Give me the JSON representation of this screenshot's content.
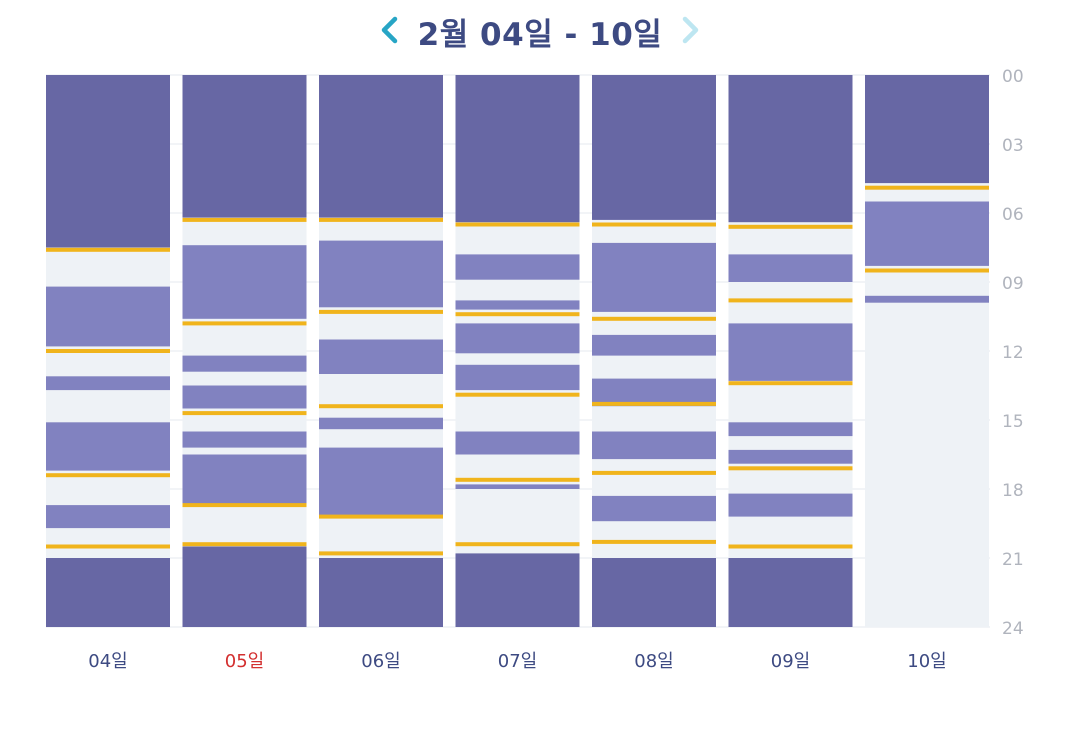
{
  "header": {
    "title": "2월 04일 - 10일",
    "prev_icon": "chevron-left-icon",
    "next_icon": "chevron-right-icon"
  },
  "colors": {
    "deep_sleep": "#6767a4",
    "light_sleep": "#8182c0",
    "awake": "#eef2f6",
    "marker": "#f0b41c",
    "day_label": "#3d4a82",
    "day_label_highlight": "#d32f2f",
    "hour_label": "#b0b4bd",
    "nav_active": "#27a5c5",
    "nav_inactive": "#bde6f1"
  },
  "chart_data": {
    "type": "bar",
    "x_label": "",
    "y_label": "",
    "y_ticks": [
      "00",
      "03",
      "06",
      "09",
      "12",
      "15",
      "18",
      "21",
      "24"
    ],
    "ylim": [
      0,
      24
    ],
    "y_unit": "hours",
    "days": [
      {
        "label": "04일",
        "highlight": false,
        "segments": [
          {
            "start": 0,
            "end": 7.5,
            "kind": "deep_sleep"
          },
          {
            "start": 9.2,
            "end": 11.8,
            "kind": "light_sleep"
          },
          {
            "start": 13.1,
            "end": 13.7,
            "kind": "light_sleep"
          },
          {
            "start": 15.1,
            "end": 17.2,
            "kind": "light_sleep"
          },
          {
            "start": 18.7,
            "end": 19.7,
            "kind": "light_sleep"
          },
          {
            "start": 21.0,
            "end": 24,
            "kind": "deep_sleep"
          }
        ],
        "markers": [
          7.6,
          12.0,
          17.4,
          20.5
        ]
      },
      {
        "label": "05일",
        "highlight": true,
        "segments": [
          {
            "start": 0,
            "end": 6.2,
            "kind": "deep_sleep"
          },
          {
            "start": 7.4,
            "end": 10.6,
            "kind": "light_sleep"
          },
          {
            "start": 12.2,
            "end": 12.9,
            "kind": "light_sleep"
          },
          {
            "start": 13.5,
            "end": 14.5,
            "kind": "light_sleep"
          },
          {
            "start": 15.5,
            "end": 16.2,
            "kind": "light_sleep"
          },
          {
            "start": 16.5,
            "end": 18.7,
            "kind": "light_sleep"
          },
          {
            "start": 20.5,
            "end": 24,
            "kind": "deep_sleep"
          }
        ],
        "markers": [
          6.3,
          10.8,
          14.7,
          18.7,
          20.4
        ]
      },
      {
        "label": "06일",
        "highlight": false,
        "segments": [
          {
            "start": 0,
            "end": 6.2,
            "kind": "deep_sleep"
          },
          {
            "start": 7.2,
            "end": 10.1,
            "kind": "light_sleep"
          },
          {
            "start": 11.5,
            "end": 13.0,
            "kind": "light_sleep"
          },
          {
            "start": 14.9,
            "end": 15.4,
            "kind": "light_sleep"
          },
          {
            "start": 16.2,
            "end": 19.2,
            "kind": "light_sleep"
          },
          {
            "start": 21.0,
            "end": 24,
            "kind": "deep_sleep"
          }
        ],
        "markers": [
          6.3,
          10.3,
          14.4,
          19.2,
          20.8
        ]
      },
      {
        "label": "07일",
        "highlight": false,
        "segments": [
          {
            "start": 0,
            "end": 6.4,
            "kind": "deep_sleep"
          },
          {
            "start": 7.8,
            "end": 8.9,
            "kind": "light_sleep"
          },
          {
            "start": 9.8,
            "end": 10.2,
            "kind": "light_sleep"
          },
          {
            "start": 10.8,
            "end": 12.1,
            "kind": "light_sleep"
          },
          {
            "start": 12.6,
            "end": 13.7,
            "kind": "light_sleep"
          },
          {
            "start": 15.5,
            "end": 16.5,
            "kind": "light_sleep"
          },
          {
            "start": 17.8,
            "end": 18.0,
            "kind": "light_sleep"
          },
          {
            "start": 20.8,
            "end": 24,
            "kind": "deep_sleep"
          }
        ],
        "markers": [
          6.5,
          10.4,
          13.9,
          17.6,
          20.4
        ]
      },
      {
        "label": "08일",
        "highlight": false,
        "segments": [
          {
            "start": 0,
            "end": 6.3,
            "kind": "deep_sleep"
          },
          {
            "start": 7.3,
            "end": 10.3,
            "kind": "light_sleep"
          },
          {
            "start": 11.3,
            "end": 12.2,
            "kind": "light_sleep"
          },
          {
            "start": 13.2,
            "end": 14.4,
            "kind": "light_sleep"
          },
          {
            "start": 15.5,
            "end": 16.7,
            "kind": "light_sleep"
          },
          {
            "start": 18.3,
            "end": 19.4,
            "kind": "light_sleep"
          },
          {
            "start": 21.0,
            "end": 24,
            "kind": "deep_sleep"
          }
        ],
        "markers": [
          6.5,
          10.6,
          14.3,
          17.3,
          20.3
        ]
      },
      {
        "label": "09일",
        "highlight": false,
        "segments": [
          {
            "start": 0,
            "end": 6.4,
            "kind": "deep_sleep"
          },
          {
            "start": 7.8,
            "end": 9.0,
            "kind": "light_sleep"
          },
          {
            "start": 10.8,
            "end": 13.3,
            "kind": "light_sleep"
          },
          {
            "start": 15.1,
            "end": 15.7,
            "kind": "light_sleep"
          },
          {
            "start": 16.3,
            "end": 16.9,
            "kind": "light_sleep"
          },
          {
            "start": 18.2,
            "end": 19.2,
            "kind": "light_sleep"
          },
          {
            "start": 21.0,
            "end": 24,
            "kind": "deep_sleep"
          }
        ],
        "markers": [
          6.6,
          9.8,
          13.4,
          17.1,
          20.5
        ]
      },
      {
        "label": "10일",
        "highlight": false,
        "segments": [
          {
            "start": 0,
            "end": 4.7,
            "kind": "deep_sleep"
          },
          {
            "start": 5.5,
            "end": 8.3,
            "kind": "light_sleep"
          },
          {
            "start": 9.6,
            "end": 9.9,
            "kind": "light_sleep"
          }
        ],
        "markers": [
          4.9,
          8.5
        ]
      }
    ]
  }
}
